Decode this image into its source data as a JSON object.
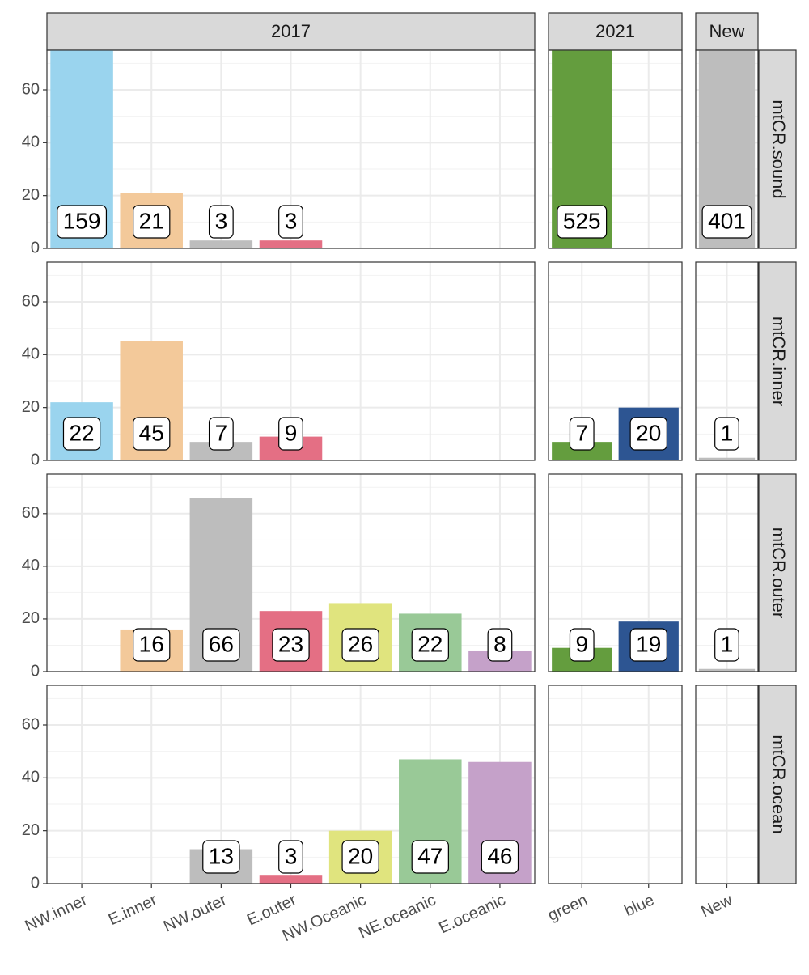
{
  "chart_data": {
    "type": "bar",
    "columns": [
      {
        "label": "2017",
        "categories": [
          "NW.inner",
          "E.inner",
          "NW.outer",
          "E.outer",
          "NW.Oceanic",
          "NE.oceanic",
          "E.oceanic"
        ],
        "colors": [
          "#9ad4ee",
          "#f3c99a",
          "#bdbdbd",
          "#e46f84",
          "#e0e47e",
          "#99c997",
          "#c5a1c9"
        ]
      },
      {
        "label": "2021",
        "categories": [
          "green",
          "blue"
        ],
        "colors": [
          "#649d3e",
          "#2d5592"
        ]
      },
      {
        "label": "New",
        "categories": [
          "New"
        ],
        "colors": [
          "#bdbdbd"
        ]
      }
    ],
    "rows": [
      {
        "label": "mtCR.sound",
        "values": [
          [
            159,
            21,
            3,
            3,
            null,
            null,
            null
          ],
          [
            525,
            null
          ],
          [
            401
          ]
        ]
      },
      {
        "label": "mtCR.inner",
        "values": [
          [
            22,
            45,
            7,
            9,
            null,
            null,
            null
          ],
          [
            7,
            20
          ],
          [
            1
          ]
        ]
      },
      {
        "label": "mtCR.outer",
        "values": [
          [
            null,
            16,
            66,
            23,
            26,
            22,
            8
          ],
          [
            9,
            19
          ],
          [
            1
          ]
        ]
      },
      {
        "label": "mtCR.ocean",
        "values": [
          [
            null,
            null,
            13,
            3,
            20,
            47,
            46
          ],
          [
            null,
            null
          ],
          [
            null
          ]
        ]
      }
    ],
    "ylim": [
      0,
      75
    ],
    "yticks": [
      0,
      20,
      40,
      60
    ],
    "minor_yticks": [
      10,
      30,
      50,
      70
    ],
    "grid": true
  }
}
